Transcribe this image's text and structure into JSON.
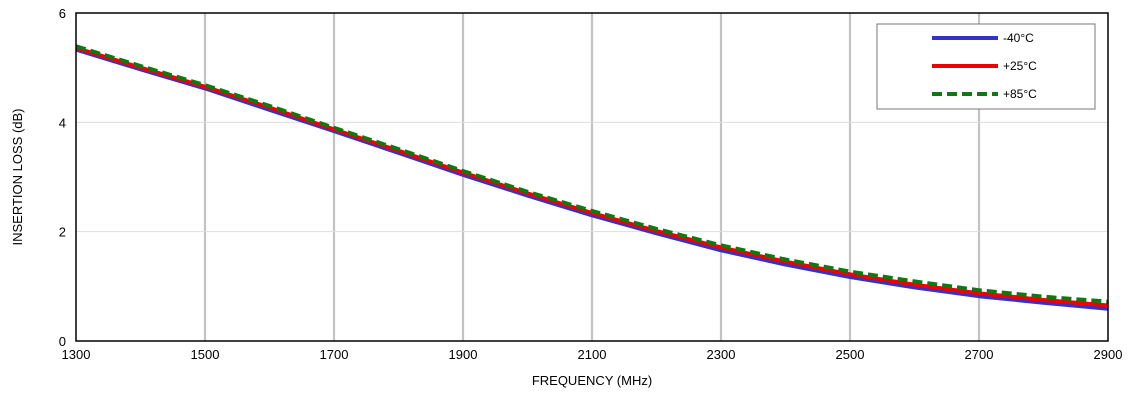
{
  "chart_data": {
    "type": "line",
    "title": "",
    "xlabel": "FREQUENCY (MHz)",
    "ylabel": "INSERTION LOSS (dB)",
    "xlim": [
      1300,
      2900
    ],
    "ylim": [
      0,
      6
    ],
    "xticks": [
      1300,
      1500,
      1700,
      1900,
      2100,
      2300,
      2500,
      2700,
      2900
    ],
    "yticks": [
      0,
      2,
      4,
      6
    ],
    "grid": {
      "vertical": true,
      "horizontal": true
    },
    "legend_position": "top-right",
    "x": [
      1300,
      1400,
      1500,
      1600,
      1700,
      1800,
      1900,
      2000,
      2100,
      2200,
      2300,
      2400,
      2500,
      2600,
      2700,
      2800,
      2900
    ],
    "series": [
      {
        "name": "-40°C",
        "color": "#3333cc",
        "style": "solid",
        "values": [
          5.33,
          4.97,
          4.62,
          4.23,
          3.84,
          3.44,
          3.04,
          2.66,
          2.3,
          1.97,
          1.66,
          1.4,
          1.17,
          0.98,
          0.82,
          0.7,
          0.59
        ]
      },
      {
        "name": "+25°C",
        "color": "#ee0000",
        "style": "solid",
        "values": [
          5.36,
          5.0,
          4.65,
          4.27,
          3.87,
          3.48,
          3.08,
          2.7,
          2.34,
          2.01,
          1.71,
          1.45,
          1.22,
          1.03,
          0.87,
          0.75,
          0.65
        ]
      },
      {
        "name": "+85°C",
        "color": "#117711",
        "style": "dashed",
        "values": [
          5.39,
          5.03,
          4.68,
          4.3,
          3.9,
          3.51,
          3.11,
          2.73,
          2.38,
          2.05,
          1.75,
          1.49,
          1.27,
          1.09,
          0.93,
          0.81,
          0.72
        ]
      }
    ]
  }
}
